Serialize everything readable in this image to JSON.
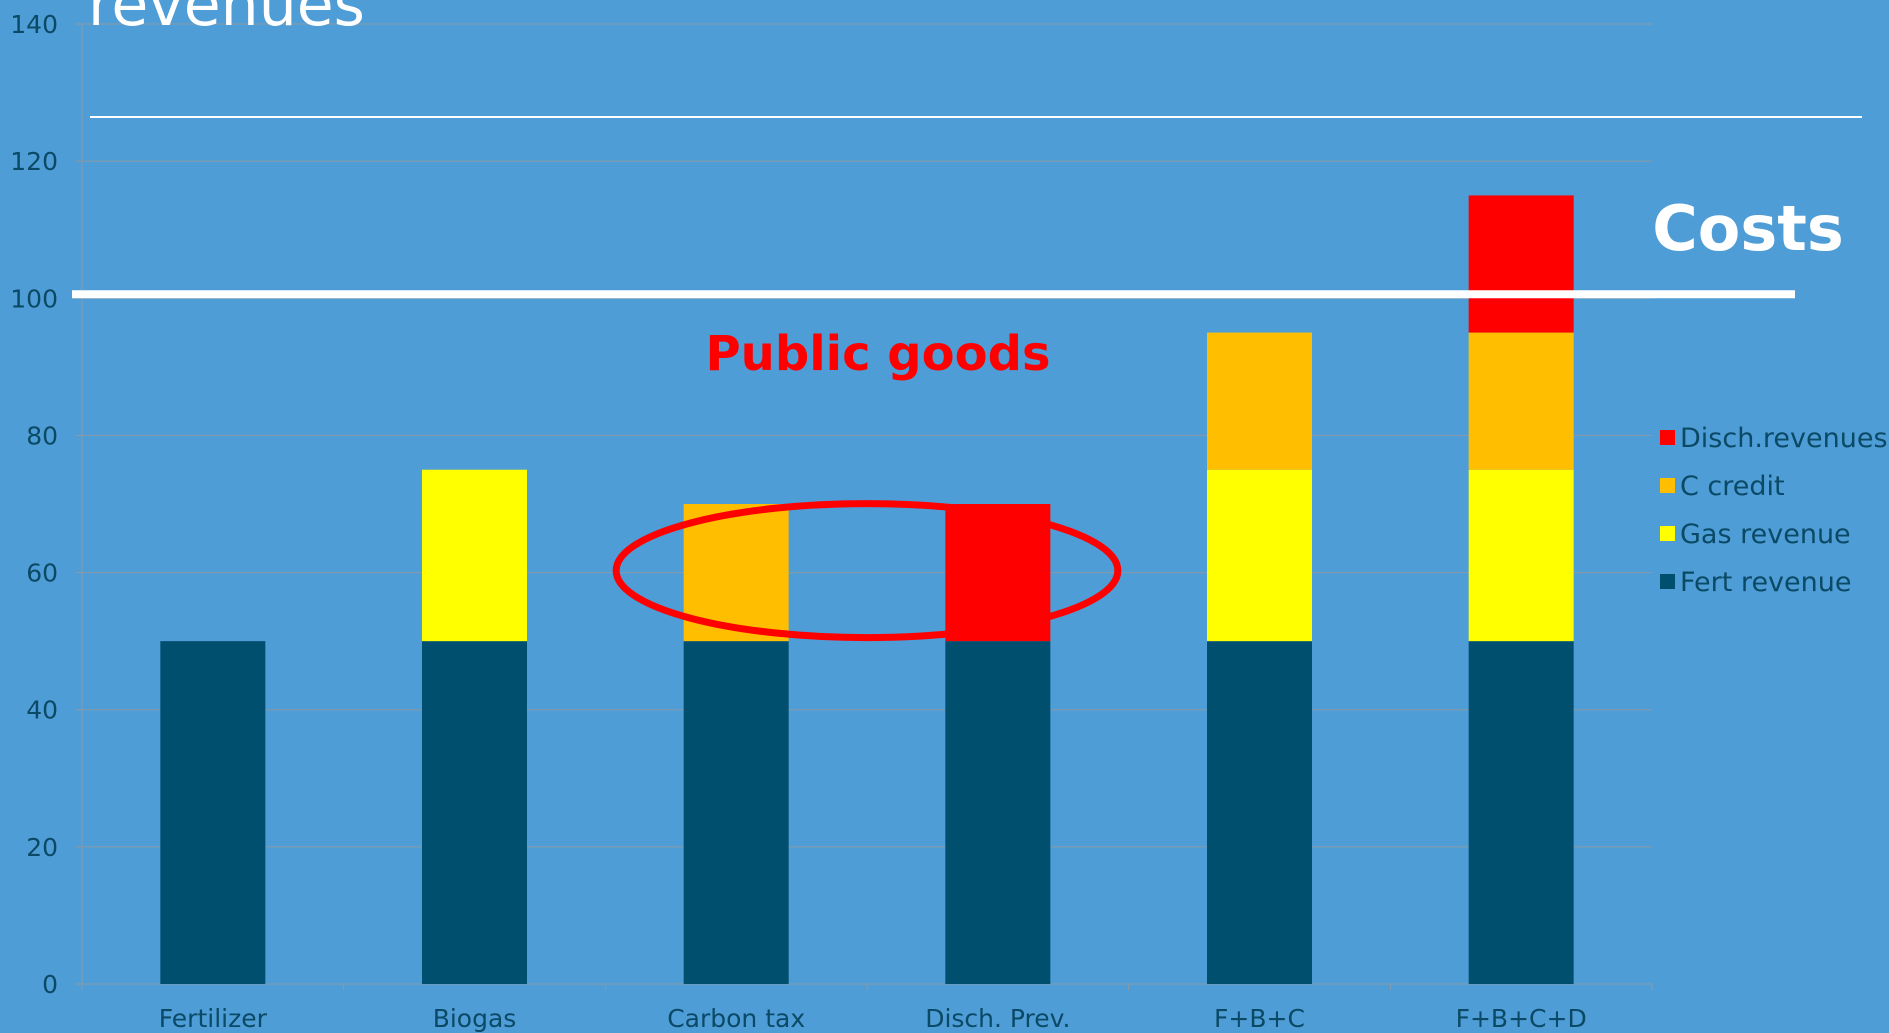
{
  "colors": {
    "background": "#4f9dd6",
    "text": "#0b4a66",
    "gridline": "#8a9aa6",
    "annotation_red": "#ff0000",
    "white": "#ffffff"
  },
  "chart_data": {
    "type": "bar",
    "stacked": true,
    "title": "revenues",
    "categories": [
      "Fertilizer",
      "Biogas",
      "Carbon tax",
      "Disch. Prev.",
      "F+B+C",
      "F+B+C+D"
    ],
    "series": [
      {
        "name": "Fert revenue",
        "color": "#004f6e",
        "values": [
          50,
          50,
          50,
          50,
          50,
          50
        ]
      },
      {
        "name": "Gas revenue",
        "color": "#ffff00",
        "values": [
          0,
          25,
          0,
          0,
          25,
          25
        ]
      },
      {
        "name": "C credit",
        "color": "#ffbf00",
        "values": [
          0,
          0,
          20,
          0,
          20,
          20
        ]
      },
      {
        "name": "Disch.revenues",
        "color": "#ff0000",
        "values": [
          0,
          0,
          0,
          20,
          0,
          20
        ]
      }
    ],
    "ylim": [
      0,
      140
    ],
    "yticks": [
      0,
      20,
      40,
      60,
      80,
      100,
      120,
      140
    ],
    "grid": true,
    "legend_position": "right",
    "reference_lines": [
      {
        "label": "Costs",
        "value": 100
      }
    ],
    "annotations": [
      {
        "text": "Public goods",
        "highlights": [
          "Carbon tax",
          "Disch. Prev."
        ],
        "around_value": 60
      }
    ]
  }
}
